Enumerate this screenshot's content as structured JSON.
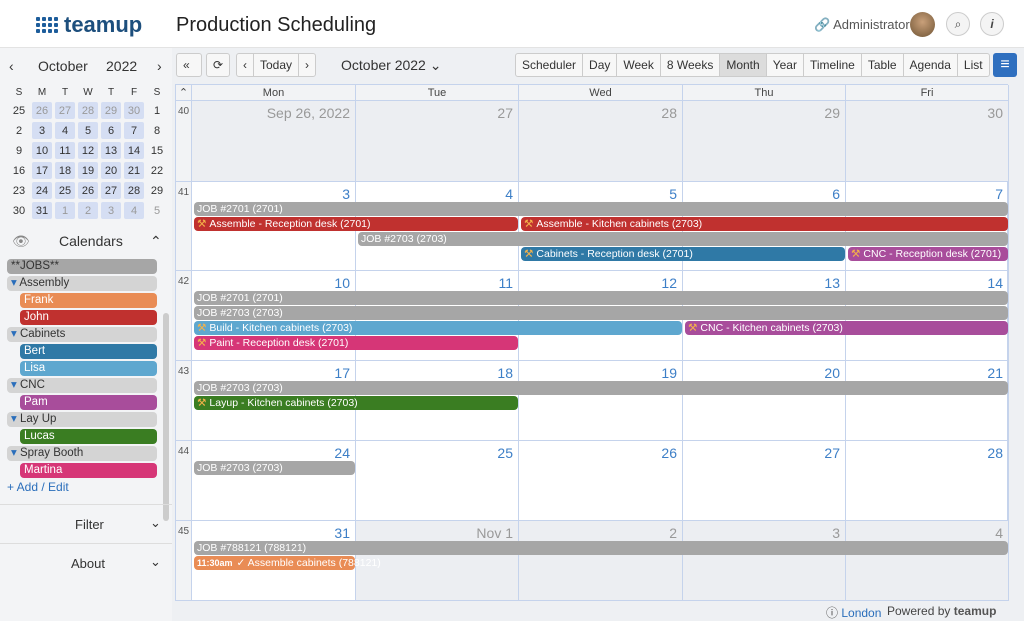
{
  "header": {
    "logo": "teamup",
    "title": "Production Scheduling",
    "user": "Administrator"
  },
  "mini_cal": {
    "month": "October",
    "year": "2022",
    "dow": [
      "S",
      "M",
      "T",
      "W",
      "T",
      "F",
      "S"
    ],
    "weeks": [
      [
        "25",
        "26",
        "27",
        "28",
        "29",
        "30",
        "1"
      ],
      [
        "2",
        "3",
        "4",
        "5",
        "6",
        "7",
        "8"
      ],
      [
        "9",
        "10",
        "11",
        "12",
        "13",
        "14",
        "15"
      ],
      [
        "16",
        "17",
        "18",
        "19",
        "20",
        "21",
        "22"
      ],
      [
        "23",
        "24",
        "25",
        "26",
        "27",
        "28",
        "29"
      ],
      [
        "30",
        "31",
        "1",
        "2",
        "3",
        "4",
        "5"
      ]
    ]
  },
  "calendars": {
    "title": "Calendars",
    "items": [
      {
        "label": "**JOBS**",
        "type": "grp",
        "color": "#a6a6a6"
      },
      {
        "label": "Assembly",
        "type": "grp"
      },
      {
        "label": "Frank",
        "type": "sub",
        "color": "#e98c55"
      },
      {
        "label": "John",
        "type": "sub",
        "color": "#c0312f"
      },
      {
        "label": "Cabinets",
        "type": "grp"
      },
      {
        "label": "Bert",
        "type": "sub",
        "color": "#2f79a6"
      },
      {
        "label": "Lisa",
        "type": "sub",
        "color": "#5ea7cf"
      },
      {
        "label": "CNC",
        "type": "grp"
      },
      {
        "label": "Pam",
        "type": "sub",
        "color": "#a84d9b"
      },
      {
        "label": "Lay Up",
        "type": "grp"
      },
      {
        "label": "Lucas",
        "type": "sub",
        "color": "#3a7d22"
      },
      {
        "label": "Spray Booth",
        "type": "grp"
      },
      {
        "label": "Martina",
        "type": "sub",
        "color": "#d63677"
      }
    ],
    "add": "+ Add / Edit"
  },
  "filter": "Filter",
  "about": "About",
  "toolbar": {
    "today": "Today",
    "period": "October 2022",
    "views": [
      "Scheduler",
      "Day",
      "Week",
      "8 Weeks",
      "Month",
      "Year",
      "Timeline",
      "Table",
      "Agenda",
      "List"
    ],
    "active": "Month"
  },
  "days": [
    "Mon",
    "Tue",
    "Wed",
    "Thu",
    "Fri"
  ],
  "weeks": [
    {
      "num": "40",
      "dates": [
        "Sep 26, 2022",
        "27",
        "28",
        "29",
        "30"
      ],
      "other": [
        1,
        1,
        1,
        1,
        1
      ],
      "events": []
    },
    {
      "num": "41",
      "dates": [
        "3",
        "4",
        "5",
        "6",
        "7"
      ],
      "other": [
        0,
        0,
        0,
        0,
        0
      ],
      "events": [
        {
          "t": "JOB #2701 (2701)",
          "c": "#a6a6a6",
          "s": 0,
          "n": 5,
          "r": 0
        },
        {
          "t": "Assemble - Reception desk (2701)",
          "c": "#c0312f",
          "s": 0,
          "n": 2,
          "r": 1,
          "icon": true
        },
        {
          "t": "Assemble - Kitchen cabinets (2703)",
          "c": "#c0312f",
          "s": 2,
          "n": 3,
          "r": 1,
          "icon": true
        },
        {
          "t": "JOB #2703 (2703)",
          "c": "#a6a6a6",
          "s": 1,
          "n": 4,
          "r": 2
        },
        {
          "t": "Cabinets - Reception desk (2701)",
          "c": "#2f79a6",
          "s": 2,
          "n": 2,
          "r": 3,
          "icon": true
        },
        {
          "t": "CNC - Reception desk (2701)",
          "c": "#a84d9b",
          "s": 4,
          "n": 1,
          "r": 3,
          "icon": true
        }
      ]
    },
    {
      "num": "42",
      "dates": [
        "10",
        "11",
        "12",
        "13",
        "14"
      ],
      "other": [
        0,
        0,
        0,
        0,
        0
      ],
      "events": [
        {
          "t": "JOB #2701 (2701)",
          "c": "#a6a6a6",
          "s": 0,
          "n": 5,
          "r": 0
        },
        {
          "t": "JOB #2703 (2703)",
          "c": "#a6a6a6",
          "s": 0,
          "n": 5,
          "r": 1
        },
        {
          "t": "Build - Kitchen cabinets (2703)",
          "c": "#5ea7cf",
          "s": 0,
          "n": 3,
          "r": 2,
          "icon": true
        },
        {
          "t": "CNC - Kitchen cabinets (2703)",
          "c": "#a84d9b",
          "s": 3,
          "n": 2,
          "r": 2,
          "icon": true
        },
        {
          "t": "Paint - Reception desk (2701)",
          "c": "#d63677",
          "s": 0,
          "n": 2,
          "r": 3,
          "icon": true
        }
      ]
    },
    {
      "num": "43",
      "dates": [
        "17",
        "18",
        "19",
        "20",
        "21"
      ],
      "other": [
        0,
        0,
        0,
        0,
        0
      ],
      "events": [
        {
          "t": "JOB #2703 (2703)",
          "c": "#a6a6a6",
          "s": 0,
          "n": 5,
          "r": 0
        },
        {
          "t": "Layup - Kitchen cabinets (2703)",
          "c": "#3a7d22",
          "s": 0,
          "n": 2,
          "r": 1,
          "icon": true
        }
      ]
    },
    {
      "num": "44",
      "dates": [
        "24",
        "25",
        "26",
        "27",
        "28"
      ],
      "other": [
        0,
        0,
        0,
        0,
        0
      ],
      "events": [
        {
          "t": "JOB #2703 (2703)",
          "c": "#a6a6a6",
          "s": 0,
          "n": 1,
          "r": 0
        }
      ]
    },
    {
      "num": "45",
      "dates": [
        "31",
        "Nov 1",
        "2",
        "3",
        "4"
      ],
      "other": [
        0,
        1,
        1,
        1,
        1
      ],
      "events": [
        {
          "t": "JOB #788121 (788121)",
          "c": "#a6a6a6",
          "s": 0,
          "n": 5,
          "r": 0
        },
        {
          "t": "✓ Assemble cabinets (788121)",
          "time": "11:30am",
          "c": "#e98c55",
          "s": 0,
          "n": 1,
          "r": 1
        }
      ]
    }
  ],
  "footer": {
    "tz": "London",
    "powered": "Powered by",
    "brand": "teamup"
  }
}
